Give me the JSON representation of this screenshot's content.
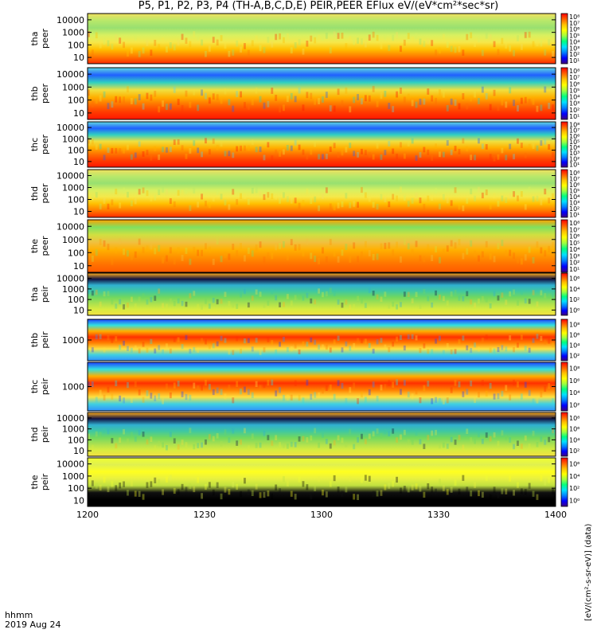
{
  "title": "P5, P1, P2, P3, P4 (TH-A,B,C,D,E) PEIR,PEER EFlux eV/(eV*cm²*sec*sr)",
  "footer": {
    "label": "hhmm",
    "date": "2019 Aug 24"
  },
  "cbar_title": "[eV/(cm²-s-sr-eV)] (data)",
  "chart_data": [
    {
      "type": "heatmap",
      "panel": "tha peer",
      "ylabel": [
        "tha",
        "peer"
      ],
      "yticks": [
        "10000",
        "1000",
        "100",
        "10"
      ],
      "ylog": true,
      "xlim": [
        "1200",
        "1400"
      ],
      "cbar_ticks": [
        "10⁸",
        "10⁷",
        "10⁶",
        "10⁵",
        "10⁴",
        "10³",
        "10²",
        "10¹"
      ],
      "palette": "top"
    },
    {
      "type": "heatmap",
      "panel": "thb peer",
      "ylabel": [
        "thb",
        "peer"
      ],
      "yticks": [
        "10000",
        "1000",
        "100",
        "10"
      ],
      "ylog": true,
      "xlim": [
        "1200",
        "1400"
      ],
      "cbar_ticks": [
        "10⁸",
        "10⁷",
        "10⁶",
        "10⁵",
        "10⁴",
        "10³",
        "10²",
        "10¹"
      ],
      "palette": "bands"
    },
    {
      "type": "heatmap",
      "panel": "thc peer",
      "ylabel": [
        "thc",
        "peer"
      ],
      "yticks": [
        "10000",
        "1000",
        "100",
        "10"
      ],
      "ylog": true,
      "xlim": [
        "1200",
        "1400"
      ],
      "cbar_ticks": [
        "10⁸",
        "10⁷",
        "10⁶",
        "10⁵",
        "10⁴",
        "10³",
        "10²",
        "10¹"
      ],
      "palette": "bands"
    },
    {
      "type": "heatmap",
      "panel": "thd peer",
      "ylabel": [
        "thd",
        "peer"
      ],
      "yticks": [
        "10000",
        "1000",
        "100",
        "10"
      ],
      "ylog": true,
      "xlim": [
        "1200",
        "1400"
      ],
      "cbar_ticks": [
        "10⁸",
        "10⁷",
        "10⁶",
        "10⁵",
        "10⁴",
        "10³",
        "10²",
        "10¹"
      ],
      "palette": "top"
    },
    {
      "type": "heatmap",
      "panel": "the peer",
      "ylabel": [
        "the",
        "peer"
      ],
      "yticks": [
        "10000",
        "1000",
        "100",
        "10"
      ],
      "ylog": true,
      "xlim": [
        "1200",
        "1400"
      ],
      "cbar_ticks": [
        "10⁸",
        "10⁷",
        "10⁶",
        "10⁵",
        "10⁴",
        "10³",
        "10²",
        "10¹"
      ],
      "palette": "hot"
    },
    {
      "type": "heatmap",
      "panel": "tha peir",
      "ylabel": [
        "tha",
        "peir"
      ],
      "yticks": [
        "10000",
        "1000",
        "100",
        "10"
      ],
      "ylog": true,
      "xlim": [
        "1200",
        "1400"
      ],
      "cbar_ticks": [
        "10⁶",
        "10⁴",
        "10²",
        "10⁰"
      ],
      "palette": "ion"
    },
    {
      "type": "heatmap",
      "panel": "thb peir",
      "ylabel": [
        "thb",
        "peir"
      ],
      "yticks": [
        "1000"
      ],
      "ylog": true,
      "xlim": [
        "1200",
        "1400"
      ],
      "cbar_ticks": [
        "10⁸",
        "10⁶",
        "10⁴",
        "10²"
      ],
      "palette": "ionbands"
    },
    {
      "type": "heatmap",
      "panel": "thc peir",
      "ylabel": [
        "thc",
        "peir"
      ],
      "yticks": [
        "1000"
      ],
      "ylog": true,
      "xlim": [
        "1200",
        "1400"
      ],
      "cbar_ticks": [
        "10⁸",
        "10⁶",
        "10⁴",
        "10²"
      ],
      "palette": "ionbands"
    },
    {
      "type": "heatmap",
      "panel": "thd peir",
      "ylabel": [
        "thd",
        "peir"
      ],
      "yticks": [
        "10000",
        "1000",
        "100",
        "10"
      ],
      "ylog": true,
      "xlim": [
        "1200",
        "1400"
      ],
      "cbar_ticks": [
        "10⁸",
        "10⁶",
        "10⁴",
        "10²"
      ],
      "palette": "ion"
    },
    {
      "type": "heatmap",
      "panel": "the peir",
      "ylabel": [
        "the",
        "peir"
      ],
      "yticks": [
        "10000",
        "1000",
        "100",
        "10"
      ],
      "ylog": true,
      "xlim": [
        "1200",
        "1400"
      ],
      "xticks": [
        "1200",
        "1230",
        "1300",
        "1330",
        "1400"
      ],
      "cbar_ticks": [
        "10⁶",
        "10⁴",
        "10²",
        "10⁰"
      ],
      "palette": "black"
    }
  ]
}
